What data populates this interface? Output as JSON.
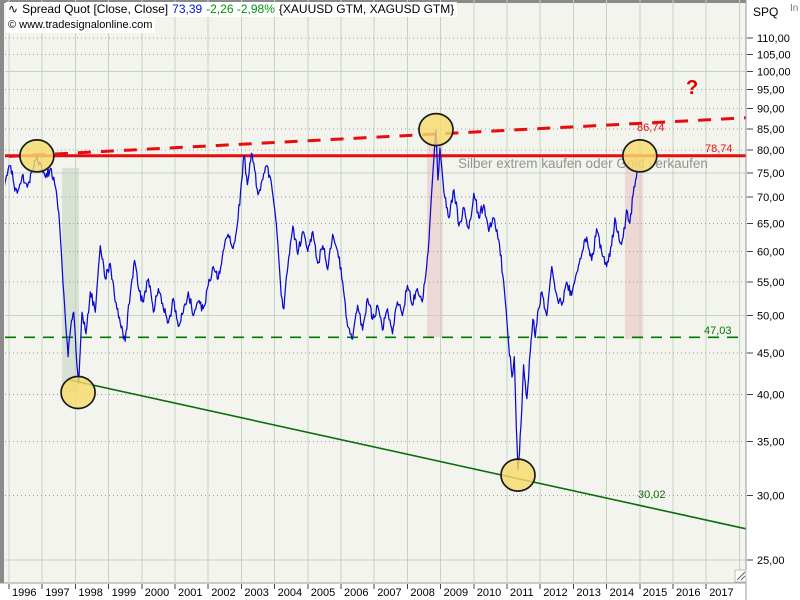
{
  "header": {
    "wave_icon": "∿",
    "title": "Spread Quot [Close, Close]",
    "last": "73,39",
    "change": "-2,26 -2,98%",
    "symbols": "{XAUUSD GTM, XAGUSD GTM}",
    "watermark": "© www.tradesignalonline.com",
    "corner_fragment": "In"
  },
  "y_axis": {
    "title": "SPQ",
    "labels": [
      "110,00",
      "105,00",
      "100,00",
      "95,00",
      "90,00",
      "85,00",
      "80,00",
      "75,00",
      "70,00",
      "65,00",
      "60,00",
      "55,00",
      "50,00",
      "45,00",
      "40,00",
      "35,00",
      "30,00",
      "25,00"
    ],
    "values": [
      110,
      105,
      100,
      95,
      90,
      85,
      80,
      75,
      70,
      65,
      60,
      55,
      50,
      45,
      40,
      35,
      30,
      25
    ]
  },
  "x_axis": {
    "labels": [
      "1996",
      "1997",
      "1998",
      "1999",
      "2000",
      "2001",
      "2002",
      "2003",
      "2004",
      "2005",
      "2006",
      "2007",
      "2008",
      "2009",
      "2010",
      "2011",
      "2012",
      "2013",
      "2014",
      "2015",
      "2016",
      "2017"
    ],
    "first_year": 1996
  },
  "annotations": {
    "question_mark": "?",
    "resistance_value": "78,74",
    "projection_value": "86,74",
    "support_value": "47,03",
    "trend_value": "30,02",
    "note": "Silber extrem kaufen oder Gold verkaufen"
  },
  "colors": {
    "plot_bg": "#f4f4ef",
    "panel_bg": "#ffffff",
    "grid_green": "#c2d4c2",
    "grid_dotted": "#9c9c9c",
    "series_blue": "#0a0ad0",
    "signal_red": "#e80c0c",
    "support_green": "#007700",
    "trend_green": "#0a6e0a",
    "band_green": "rgba(175,200,175,0.42)",
    "band_pink": "rgba(228,160,160,0.32)",
    "circle_fill": "rgba(248,219,107,0.82)",
    "circle_stroke": "#1a1a1a",
    "frame_gray": "#8a8a8a",
    "axis_text": "#000000",
    "note_gray": "#8e8e8e"
  },
  "chart_data": {
    "type": "line",
    "title": "Spread Quot [Close, Close] {XAUUSD GTM, XAGUSD GTM}",
    "xlabel": "",
    "ylabel": "SPQ",
    "x_range": [
      1995.73,
      2018.2
    ],
    "y_scale": "log",
    "y_range": [
      24.5,
      115.5
    ],
    "grid": {
      "solid_values": [
        100,
        75,
        50,
        25
      ],
      "dotted_values": [
        110,
        105,
        95,
        90,
        85,
        80,
        70,
        65,
        60,
        55,
        45,
        40,
        35,
        30
      ]
    },
    "levels": {
      "resistance": 78.74,
      "support": 47.03
    },
    "trendlines": [
      {
        "name": "projection-dashed-red",
        "style": "dashed",
        "color_key": "signal_red",
        "label": "86,74",
        "points": [
          [
            1996.0,
            78.6
          ],
          [
            2018.2,
            87.7
          ]
        ]
      },
      {
        "name": "long-term-support-green",
        "style": "solid",
        "color_key": "trend_green",
        "label": "30,02",
        "points": [
          [
            1997.78,
            41.7
          ],
          [
            2018.2,
            27.3
          ]
        ]
      }
    ],
    "bands": [
      {
        "x": [
          1997.6,
          1998.11
        ],
        "v": [
          76.1,
          40.3
        ],
        "color_key": "band_green"
      },
      {
        "x": [
          2008.59,
          2009.07
        ],
        "v": [
          82.3,
          47.1
        ],
        "color_key": "band_pink"
      },
      {
        "x": [
          2014.55,
          2015.1
        ],
        "v": [
          79.3,
          46.8
        ],
        "color_key": "band_pink"
      }
    ],
    "circles": [
      [
        1996.84,
        78.7
      ],
      [
        1998.08,
        40.2
      ],
      [
        2008.86,
        84.8
      ],
      [
        2011.33,
        31.8
      ],
      [
        2015.0,
        78.7
      ]
    ],
    "noise_amplitude": 0.9,
    "series": [
      {
        "name": "SPQ Close",
        "points": [
          [
            1995.85,
            71.5
          ],
          [
            1995.95,
            74.5
          ],
          [
            1996.05,
            76.5
          ],
          [
            1996.15,
            72.5
          ],
          [
            1996.25,
            70.8
          ],
          [
            1996.4,
            74.5
          ],
          [
            1996.55,
            72.0
          ],
          [
            1996.7,
            75.5
          ],
          [
            1996.84,
            78.8
          ],
          [
            1996.95,
            77.0
          ],
          [
            1997.1,
            74.0
          ],
          [
            1997.25,
            76.0
          ],
          [
            1997.4,
            72.0
          ],
          [
            1997.5,
            67.0
          ],
          [
            1997.6,
            57.5
          ],
          [
            1997.68,
            51.0
          ],
          [
            1997.78,
            44.5
          ],
          [
            1997.86,
            48.5
          ],
          [
            1997.95,
            50.5
          ],
          [
            1998.02,
            45.0
          ],
          [
            1998.1,
            41.3
          ],
          [
            1998.2,
            50.5
          ],
          [
            1998.32,
            47.5
          ],
          [
            1998.45,
            53.5
          ],
          [
            1998.6,
            50.5
          ],
          [
            1998.75,
            61.0
          ],
          [
            1998.9,
            55.5
          ],
          [
            1999.05,
            58.0
          ],
          [
            1999.2,
            52.0
          ],
          [
            1999.35,
            49.0
          ],
          [
            1999.5,
            46.5
          ],
          [
            1999.65,
            53.0
          ],
          [
            1999.78,
            58.5
          ],
          [
            1999.9,
            54.0
          ],
          [
            2000.05,
            52.0
          ],
          [
            2000.2,
            55.5
          ],
          [
            2000.35,
            50.5
          ],
          [
            2000.5,
            54.0
          ],
          [
            2000.65,
            51.0
          ],
          [
            2000.8,
            49.0
          ],
          [
            2000.95,
            52.5
          ],
          [
            2001.1,
            48.5
          ],
          [
            2001.25,
            50.5
          ],
          [
            2001.4,
            53.5
          ],
          [
            2001.55,
            50.0
          ],
          [
            2001.7,
            52.0
          ],
          [
            2001.85,
            51.0
          ],
          [
            2002.0,
            54.5
          ],
          [
            2002.15,
            57.5
          ],
          [
            2002.3,
            55.5
          ],
          [
            2002.45,
            60.0
          ],
          [
            2002.6,
            63.0
          ],
          [
            2002.75,
            60.5
          ],
          [
            2002.9,
            66.0
          ],
          [
            2003.0,
            73.0
          ],
          [
            2003.08,
            78.8
          ],
          [
            2003.18,
            72.5
          ],
          [
            2003.3,
            79.3
          ],
          [
            2003.4,
            75.5
          ],
          [
            2003.5,
            70.5
          ],
          [
            2003.62,
            73.5
          ],
          [
            2003.75,
            76.5
          ],
          [
            2003.9,
            73.0
          ],
          [
            2004.05,
            65.0
          ],
          [
            2004.2,
            53.0
          ],
          [
            2004.28,
            51.0
          ],
          [
            2004.4,
            57.5
          ],
          [
            2004.55,
            64.5
          ],
          [
            2004.7,
            59.5
          ],
          [
            2004.85,
            63.5
          ],
          [
            2005.0,
            60.0
          ],
          [
            2005.15,
            63.5
          ],
          [
            2005.3,
            58.0
          ],
          [
            2005.45,
            61.0
          ],
          [
            2005.6,
            57.0
          ],
          [
            2005.75,
            63.0
          ],
          [
            2005.9,
            60.0
          ],
          [
            2006.05,
            55.0
          ],
          [
            2006.2,
            48.5
          ],
          [
            2006.35,
            46.8
          ],
          [
            2006.5,
            51.5
          ],
          [
            2006.65,
            48.0
          ],
          [
            2006.8,
            52.5
          ],
          [
            2006.95,
            49.5
          ],
          [
            2007.1,
            51.5
          ],
          [
            2007.25,
            48.0
          ],
          [
            2007.4,
            51.0
          ],
          [
            2007.55,
            47.5
          ],
          [
            2007.7,
            52.0
          ],
          [
            2007.85,
            50.0
          ],
          [
            2008.0,
            54.5
          ],
          [
            2008.15,
            51.5
          ],
          [
            2008.3,
            54.0
          ],
          [
            2008.45,
            52.0
          ],
          [
            2008.55,
            56.0
          ],
          [
            2008.65,
            62.0
          ],
          [
            2008.75,
            73.0
          ],
          [
            2008.86,
            84.8
          ],
          [
            2008.92,
            73.5
          ],
          [
            2008.98,
            80.5
          ],
          [
            2009.1,
            71.0
          ],
          [
            2009.25,
            66.0
          ],
          [
            2009.4,
            71.5
          ],
          [
            2009.55,
            64.5
          ],
          [
            2009.7,
            68.0
          ],
          [
            2009.85,
            64.0
          ],
          [
            2010.0,
            70.8
          ],
          [
            2010.15,
            66.0
          ],
          [
            2010.3,
            68.5
          ],
          [
            2010.45,
            63.5
          ],
          [
            2010.6,
            66.0
          ],
          [
            2010.75,
            62.0
          ],
          [
            2010.9,
            55.0
          ],
          [
            2011.05,
            46.0
          ],
          [
            2011.15,
            42.0
          ],
          [
            2011.22,
            44.5
          ],
          [
            2011.28,
            36.5
          ],
          [
            2011.33,
            32.3
          ],
          [
            2011.42,
            36.5
          ],
          [
            2011.5,
            43.5
          ],
          [
            2011.6,
            39.5
          ],
          [
            2011.7,
            45.0
          ],
          [
            2011.78,
            49.5
          ],
          [
            2011.85,
            47.0
          ],
          [
            2011.95,
            51.0
          ],
          [
            2012.05,
            53.5
          ],
          [
            2012.2,
            50.0
          ],
          [
            2012.35,
            57.5
          ],
          [
            2012.5,
            53.0
          ],
          [
            2012.65,
            51.5
          ],
          [
            2012.8,
            55.0
          ],
          [
            2012.95,
            53.0
          ],
          [
            2013.1,
            56.5
          ],
          [
            2013.25,
            59.5
          ],
          [
            2013.4,
            62.5
          ],
          [
            2013.55,
            58.5
          ],
          [
            2013.7,
            64.0
          ],
          [
            2013.85,
            60.0
          ],
          [
            2014.0,
            57.5
          ],
          [
            2014.15,
            61.0
          ],
          [
            2014.25,
            66.0
          ],
          [
            2014.4,
            61.5
          ],
          [
            2014.5,
            62.5
          ],
          [
            2014.6,
            67.5
          ],
          [
            2014.7,
            65.0
          ],
          [
            2014.8,
            70.5
          ],
          [
            2014.92,
            75.5
          ]
        ]
      }
    ]
  }
}
